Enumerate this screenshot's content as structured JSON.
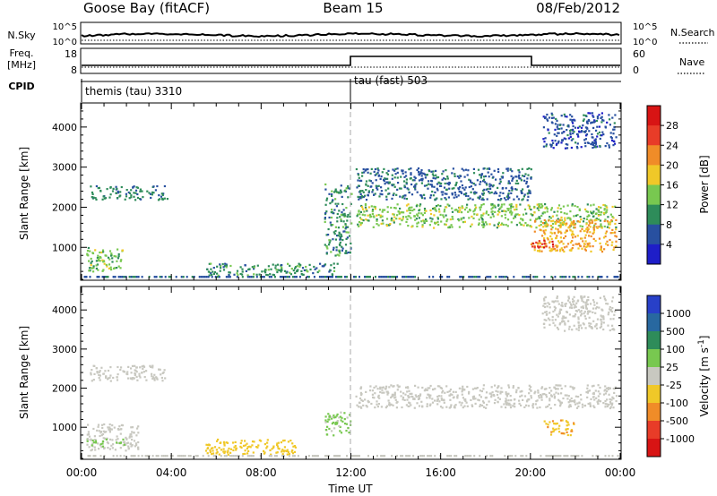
{
  "header": {
    "station": "Goose Bay (fitACF)",
    "beam": "Beam 15",
    "date": "08/Feb/2012"
  },
  "noise_panel": {
    "left_label": "N.Sky",
    "right_label": "N.Search",
    "left_ticks": [
      "10^5",
      "10^0"
    ],
    "right_ticks": [
      "10^5",
      "10^0"
    ]
  },
  "freq_panel": {
    "left_label_line1": "Freq.",
    "left_label_line2": "[MHz]",
    "right_label": "Nave",
    "left_ticks": [
      "18",
      "8"
    ],
    "right_ticks": [
      "60",
      "0"
    ]
  },
  "cpid_panel": {
    "label": "CPID",
    "modes": [
      {
        "name": "themis (tau) 3310",
        "start_hour": 0,
        "end_hour": 12
      },
      {
        "name": "tau (fast) 503",
        "start_hour": 12,
        "end_hour": 24
      }
    ]
  },
  "x_axis": {
    "label": "Time UT",
    "ticks": [
      "00:00",
      "04:00",
      "08:00",
      "12:00",
      "16:00",
      "20:00",
      "00:00"
    ]
  },
  "power_panel": {
    "ylabel": "Slant Range [km]",
    "yticks": [
      "1000",
      "2000",
      "3000",
      "4000"
    ],
    "colorbar_label": "Power [dB]",
    "colorbar_ticks": [
      "4",
      "8",
      "12",
      "16",
      "20",
      "24",
      "28"
    ],
    "colorbar_colors": [
      "#1e1ec8",
      "#2850a0",
      "#2e8c5a",
      "#78c850",
      "#f0c828",
      "#f08c28",
      "#e83c28",
      "#d81414"
    ]
  },
  "velocity_panel": {
    "ylabel": "Slant Range [km]",
    "yticks": [
      "1000",
      "2000",
      "3000",
      "4000"
    ],
    "colorbar_label": "Velocity [m s^-1]",
    "colorbar_ticks": [
      "1000",
      "500",
      "100",
      "25",
      "-25",
      "-100",
      "-500",
      "-1000"
    ],
    "colorbar_colors": [
      "#2840c8",
      "#2868a0",
      "#2e8c5a",
      "#78c850",
      "#c8c8c0",
      "#f0c828",
      "#f08c28",
      "#e83c28",
      "#d81414"
    ]
  },
  "chart_data": [
    {
      "type": "heatmap",
      "name": "Power",
      "xlabel": "Time UT",
      "ylabel": "Slant Range [km]",
      "xlim": [
        0,
        24
      ],
      "ylim": [
        180,
        4600
      ],
      "colorbar": {
        "label": "Power [dB]",
        "range": [
          0,
          32
        ]
      },
      "echo_regions": [
        {
          "t0": 0.2,
          "t1": 1.8,
          "r0": 400,
          "r1": 1000,
          "value": 14
        },
        {
          "t0": 0.3,
          "t1": 3.8,
          "r0": 2200,
          "r1": 2550,
          "value": 9
        },
        {
          "t0": 5.5,
          "t1": 11.5,
          "r0": 300,
          "r1": 600,
          "value": 10
        },
        {
          "t0": 10.8,
          "t1": 12.0,
          "r0": 800,
          "r1": 2600,
          "value": 10
        },
        {
          "t0": 12.2,
          "t1": 23.8,
          "r0": 1500,
          "r1": 2100,
          "value": 14
        },
        {
          "t0": 12.2,
          "t1": 20.0,
          "r0": 2200,
          "r1": 3000,
          "value": 7
        },
        {
          "t0": 20.0,
          "t1": 23.8,
          "r0": 900,
          "r1": 1700,
          "value": 20
        },
        {
          "t0": 20.0,
          "t1": 21.0,
          "r0": 1000,
          "r1": 1200,
          "value": 28
        },
        {
          "t0": 20.5,
          "t1": 23.8,
          "r0": 3500,
          "r1": 4400,
          "value": 6
        }
      ]
    },
    {
      "type": "heatmap",
      "name": "Velocity",
      "xlabel": "Time UT",
      "ylabel": "Slant Range [km]",
      "xlim": [
        0,
        24
      ],
      "ylim": [
        180,
        4600
      ],
      "colorbar": {
        "label": "Velocity [m s^-1]",
        "range": [
          -1000,
          1000
        ]
      },
      "echo_regions": [
        {
          "t0": 0.2,
          "t1": 2.5,
          "r0": 400,
          "r1": 1100,
          "value": 0
        },
        {
          "t0": 0.2,
          "t1": 2.0,
          "r0": 500,
          "r1": 700,
          "value": 150
        },
        {
          "t0": 0.3,
          "t1": 3.8,
          "r0": 2200,
          "r1": 2600,
          "value": 0
        },
        {
          "t0": 5.5,
          "t1": 9.5,
          "r0": 300,
          "r1": 700,
          "value": -200
        },
        {
          "t0": 10.8,
          "t1": 12.0,
          "r0": 800,
          "r1": 1400,
          "value": 150
        },
        {
          "t0": 12.2,
          "t1": 23.8,
          "r0": 1500,
          "r1": 2100,
          "value": 0
        },
        {
          "t0": 20.5,
          "t1": 22.0,
          "r0": 800,
          "r1": 1200,
          "value": -300
        },
        {
          "t0": 20.5,
          "t1": 23.8,
          "r0": 3500,
          "r1": 4400,
          "value": 0
        }
      ]
    }
  ]
}
